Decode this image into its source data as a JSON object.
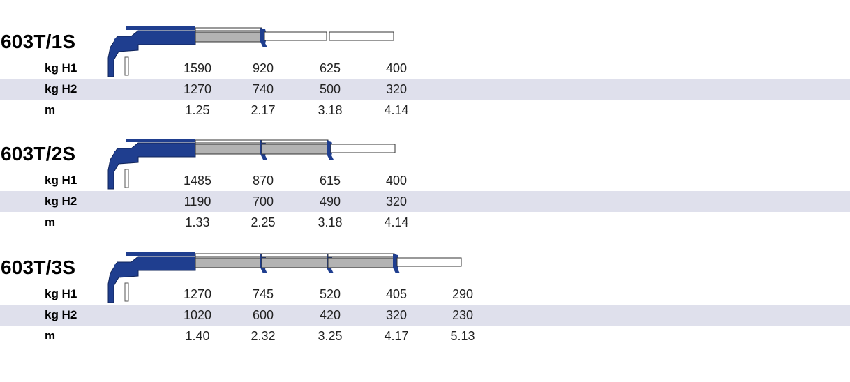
{
  "models": [
    {
      "name": "603T/1S",
      "sections": 1,
      "rows": [
        {
          "label": "kg H1",
          "values": [
            "1590",
            "920",
            "625",
            "400"
          ]
        },
        {
          "label": "kg H2",
          "values": [
            "1270",
            "740",
            "500",
            "320"
          ]
        },
        {
          "label": "m",
          "values": [
            "1.25",
            "2.17",
            "3.18",
            "4.14"
          ]
        }
      ]
    },
    {
      "name": "603T/2S",
      "sections": 2,
      "rows": [
        {
          "label": "kg H1",
          "values": [
            "1485",
            "870",
            "615",
            "400"
          ]
        },
        {
          "label": "kg H2",
          "values": [
            "1190",
            "700",
            "490",
            "320"
          ]
        },
        {
          "label": "m",
          "values": [
            "1.33",
            "2.25",
            "3.18",
            "4.14"
          ]
        }
      ]
    },
    {
      "name": "603T/3S",
      "sections": 3,
      "rows": [
        {
          "label": "kg H1",
          "values": [
            "1270",
            "745",
            "520",
            "405",
            "290"
          ]
        },
        {
          "label": "kg H2",
          "values": [
            "1020",
            "600",
            "420",
            "320",
            "230"
          ]
        },
        {
          "label": "m",
          "values": [
            "1.40",
            "2.32",
            "3.25",
            "4.17",
            "5.13"
          ]
        }
      ]
    }
  ],
  "colors": {
    "crane_blue": "#1f3e8f",
    "boom_grey": "#b3b3b3",
    "row_shade": "#dfe0ec"
  }
}
